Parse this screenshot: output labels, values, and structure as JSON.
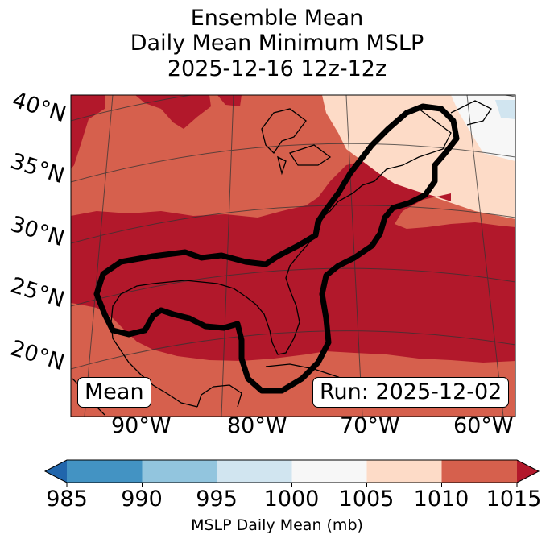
{
  "title": {
    "line1": "Ensemble Mean",
    "line2": "Daily Mean Minimum MSLP",
    "line3": "2025-12-16 12z-12z"
  },
  "map": {
    "lat_labels": [
      "40°N",
      "35°N",
      "30°N",
      "25°N",
      "20°N"
    ],
    "lon_labels": [
      "90°W",
      "80°W",
      "70°W",
      "60°W"
    ],
    "left_box": "Mean",
    "right_box": "Run: 2025-12-02"
  },
  "colorbar": {
    "ticks": [
      "985",
      "990",
      "995",
      "1000",
      "1005",
      "1010",
      "1015"
    ],
    "label": "MSLP Daily Mean (mb)",
    "colors": [
      "#2166ac",
      "#4393c3",
      "#92c5de",
      "#d1e5f0",
      "#f7f7f7",
      "#fddbc7",
      "#d6604d",
      "#b2182b"
    ]
  }
}
